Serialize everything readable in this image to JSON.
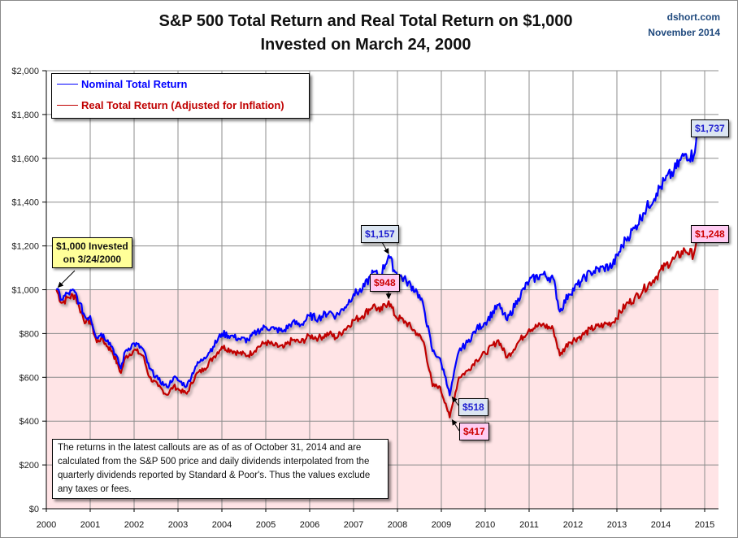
{
  "header": {
    "title_line1": "S&P 500 Total Return and Real Total Return on $1,000",
    "title_line2": "Invested on March 24, 2000",
    "source": "dshort.com",
    "date": "November 2014"
  },
  "legend": {
    "position": "top-left",
    "items": [
      {
        "label": "Nominal Total Return",
        "color": "#0000ff"
      },
      {
        "label": "Real Total Return (Adjusted for Inflation)",
        "color": "#c00000"
      }
    ]
  },
  "callouts": {
    "start": "$1,000 Invested on 3/24/2000",
    "start_line1": "$1,000 Invested",
    "start_line2": "on 3/24/2000",
    "nominal_peak_2007": "$1,157",
    "real_peak_2007": "$948",
    "nominal_low_2009": "$518",
    "real_low_2009": "$417",
    "nominal_latest": "$1,737",
    "real_latest": "$1,248"
  },
  "note": "The returns in the latest callouts are as of as of October 31, 2014 and are calculated from the S&P 500 price and daily dividends interpolated from the quarterly dividends reported by Standard & Poor's. Thus the values exclude any taxes or fees.",
  "colors": {
    "nominal": "#0000ff",
    "real": "#c00000",
    "below_baseline_fill": "#ffe4e6",
    "grid": "#8c8c8c"
  },
  "chart_data": {
    "type": "line",
    "title": "S&P 500 Total Return and Real Total Return on $1,000 Invested on March 24, 2000",
    "xlabel": "",
    "ylabel": "",
    "xlim": [
      2000,
      2015.4
    ],
    "ylim": [
      0,
      2000
    ],
    "grid": true,
    "baseline_shading": {
      "below": 1000
    },
    "x_ticks": [
      "2000",
      "2001",
      "2002",
      "2003",
      "2004",
      "2005",
      "2006",
      "2007",
      "2008",
      "2009",
      "2010",
      "2011",
      "2012",
      "2013",
      "2014",
      "2015"
    ],
    "y_ticks": [
      "$0",
      "$200",
      "$400",
      "$600",
      "$800",
      "$1,000",
      "$1,200",
      "$1,400",
      "$1,600",
      "$1,800",
      "$2,000"
    ],
    "y_tick_values": [
      0,
      200,
      400,
      600,
      800,
      1000,
      1200,
      1400,
      1600,
      1800,
      2000
    ],
    "x": [
      2000.23,
      2000.35,
      2000.5,
      2000.65,
      2000.75,
      2000.9,
      2001.0,
      2001.15,
      2001.25,
      2001.4,
      2001.5,
      2001.7,
      2001.8,
      2002.0,
      2002.2,
      2002.35,
      2002.55,
      2002.75,
      2002.9,
      2003.05,
      2003.2,
      2003.4,
      2003.6,
      2003.8,
      2004.0,
      2004.2,
      2004.4,
      2004.6,
      2004.8,
      2005.0,
      2005.2,
      2005.4,
      2005.6,
      2005.8,
      2006.0,
      2006.2,
      2006.45,
      2006.6,
      2006.8,
      2007.0,
      2007.2,
      2007.45,
      2007.6,
      2007.8,
      2007.95,
      2008.2,
      2008.45,
      2008.6,
      2008.8,
      2008.95,
      2009.1,
      2009.19,
      2009.4,
      2009.6,
      2009.8,
      2010.0,
      2010.3,
      2010.5,
      2010.75,
      2011.0,
      2011.3,
      2011.55,
      2011.7,
      2011.9,
      2012.2,
      2012.4,
      2012.7,
      2012.9,
      2013.2,
      2013.4,
      2013.6,
      2013.9,
      2014.1,
      2014.3,
      2014.55,
      2014.75,
      2014.83
    ],
    "series": [
      {
        "name": "Nominal Total Return",
        "values": [
          1000,
          955,
          985,
          990,
          940,
          870,
          880,
          780,
          800,
          770,
          740,
          640,
          720,
          755,
          730,
          640,
          590,
          555,
          600,
          580,
          560,
          650,
          690,
          740,
          800,
          790,
          775,
          770,
          810,
          830,
          820,
          810,
          850,
          840,
          880,
          870,
          900,
          880,
          920,
          980,
          1000,
          1080,
          1060,
          1157,
          1080,
          1040,
          990,
          920,
          720,
          690,
          600,
          518,
          720,
          760,
          820,
          850,
          930,
          860,
          960,
          1040,
          1070,
          1050,
          900,
          980,
          1040,
          1080,
          1100,
          1110,
          1230,
          1280,
          1350,
          1440,
          1500,
          1540,
          1620,
          1610,
          1737
        ]
      },
      {
        "name": "Real Total Return (Adjusted for Inflation)",
        "values": [
          1000,
          940,
          965,
          975,
          920,
          850,
          860,
          760,
          780,
          740,
          720,
          620,
          690,
          725,
          700,
          600,
          560,
          520,
          560,
          540,
          525,
          610,
          640,
          690,
          740,
          725,
          710,
          700,
          735,
          760,
          745,
          735,
          770,
          760,
          790,
          780,
          800,
          780,
          820,
          860,
          880,
          930,
          900,
          948,
          880,
          850,
          800,
          760,
          560,
          560,
          480,
          417,
          600,
          630,
          680,
          710,
          770,
          690,
          760,
          820,
          840,
          820,
          700,
          760,
          790,
          820,
          840,
          850,
          930,
          960,
          1000,
          1060,
          1110,
          1140,
          1180,
          1160,
          1248
        ]
      }
    ]
  }
}
